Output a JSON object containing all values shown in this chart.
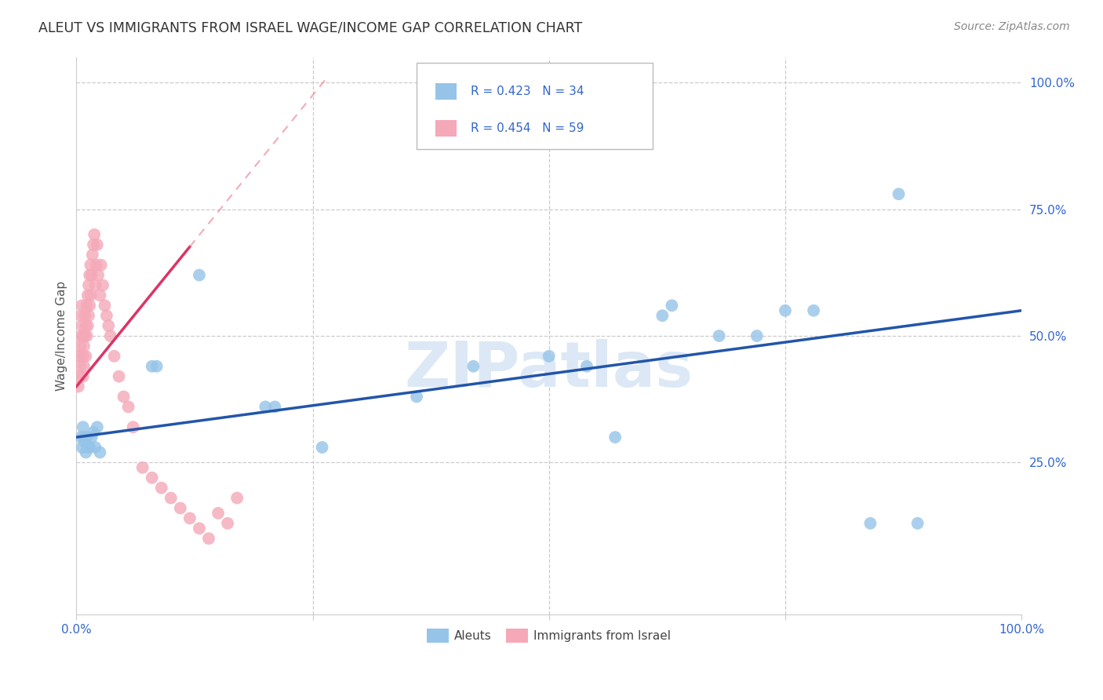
{
  "title": "ALEUT VS IMMIGRANTS FROM ISRAEL WAGE/INCOME GAP CORRELATION CHART",
  "source": "Source: ZipAtlas.com",
  "ylabel": "Wage/Income Gap",
  "watermark_text": "ZIPatlas",
  "legend_blue_r": "R = 0.423",
  "legend_blue_n": "N = 34",
  "legend_pink_r": "R = 0.454",
  "legend_pink_n": "N = 59",
  "blue_scatter_color": "#95C4E8",
  "pink_scatter_color": "#F4A8B8",
  "blue_line_color": "#2255AA",
  "pink_line_color": "#DD3366",
  "pink_dash_color": "#EE8899",
  "background_color": "#FFFFFF",
  "grid_color": "#CCCCCC",
  "text_color": "#3366CC",
  "title_color": "#333333",
  "source_color": "#888888",
  "ylabel_color": "#555555",
  "watermark_color": "#DCE8F5",
  "xlim": [
    0,
    1
  ],
  "ylim": [
    -0.05,
    1.05
  ],
  "yticks": [
    0.25,
    0.5,
    0.75,
    1.0
  ],
  "ytick_labels": [
    "25.0%",
    "50.0%",
    "75.0%",
    "100.0%"
  ],
  "xtick_positions": [
    0,
    0.25,
    0.5,
    0.75,
    1.0
  ],
  "aleuts_x": [
    0.005,
    0.006,
    0.007,
    0.008,
    0.009,
    0.01,
    0.011,
    0.012,
    0.014,
    0.016,
    0.018,
    0.02,
    0.022,
    0.025,
    0.08,
    0.085,
    0.13,
    0.2,
    0.21,
    0.26,
    0.36,
    0.42,
    0.5,
    0.54,
    0.57,
    0.62,
    0.63,
    0.68,
    0.72,
    0.75,
    0.78,
    0.84,
    0.87,
    0.89
  ],
  "aleuts_y": [
    0.3,
    0.28,
    0.32,
    0.3,
    0.29,
    0.27,
    0.3,
    0.28,
    0.28,
    0.3,
    0.31,
    0.28,
    0.32,
    0.27,
    0.44,
    0.44,
    0.62,
    0.36,
    0.36,
    0.28,
    0.38,
    0.44,
    0.46,
    0.44,
    0.3,
    0.54,
    0.56,
    0.5,
    0.5,
    0.55,
    0.55,
    0.13,
    0.78,
    0.13
  ],
  "israel_x": [
    0.003,
    0.003,
    0.004,
    0.004,
    0.005,
    0.005,
    0.006,
    0.006,
    0.007,
    0.007,
    0.007,
    0.008,
    0.008,
    0.009,
    0.009,
    0.01,
    0.01,
    0.011,
    0.011,
    0.012,
    0.012,
    0.013,
    0.013,
    0.014,
    0.014,
    0.015,
    0.015,
    0.016,
    0.017,
    0.018,
    0.019,
    0.02,
    0.021,
    0.022,
    0.023,
    0.025,
    0.026,
    0.028,
    0.03,
    0.032,
    0.034,
    0.036,
    0.04,
    0.045,
    0.05,
    0.055,
    0.06,
    0.07,
    0.08,
    0.09,
    0.1,
    0.11,
    0.12,
    0.13,
    0.14,
    0.15,
    0.16,
    0.17,
    0.002
  ],
  "israel_y": [
    0.42,
    0.46,
    0.44,
    0.48,
    0.5,
    0.54,
    0.52,
    0.56,
    0.42,
    0.46,
    0.5,
    0.44,
    0.48,
    0.5,
    0.54,
    0.46,
    0.52,
    0.5,
    0.56,
    0.52,
    0.58,
    0.54,
    0.6,
    0.56,
    0.62,
    0.58,
    0.64,
    0.62,
    0.66,
    0.68,
    0.7,
    0.6,
    0.64,
    0.68,
    0.62,
    0.58,
    0.64,
    0.6,
    0.56,
    0.54,
    0.52,
    0.5,
    0.46,
    0.42,
    0.38,
    0.36,
    0.32,
    0.24,
    0.22,
    0.2,
    0.18,
    0.16,
    0.14,
    0.12,
    0.1,
    0.15,
    0.13,
    0.18,
    0.4
  ]
}
